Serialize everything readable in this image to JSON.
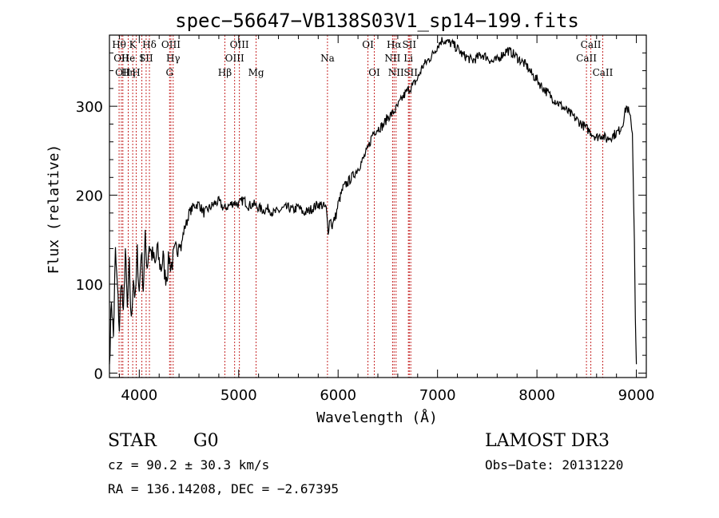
{
  "chart_data": {
    "type": "line",
    "title": "spec−56647−VB138S03V1_sp14−199.fits",
    "xlabel": "Wavelength (Å)",
    "ylabel": "Flux (relative)",
    "xlim": [
      3700,
      9100
    ],
    "ylim": [
      -5,
      380
    ],
    "xticks": [
      4000,
      5000,
      6000,
      7000,
      8000,
      9000
    ],
    "yticks": [
      0,
      100,
      200,
      300
    ],
    "series": [
      {
        "name": "spectrum",
        "x": [
          3700,
          3720,
          3740,
          3760,
          3780,
          3800,
          3820,
          3840,
          3860,
          3880,
          3900,
          3920,
          3940,
          3960,
          3980,
          4000,
          4020,
          4040,
          4060,
          4080,
          4100,
          4120,
          4140,
          4160,
          4180,
          4200,
          4220,
          4240,
          4260,
          4280,
          4300,
          4320,
          4340,
          4360,
          4380,
          4400,
          4420,
          4440,
          4460,
          4480,
          4500,
          4550,
          4600,
          4650,
          4700,
          4750,
          4800,
          4850,
          4900,
          4950,
          5000,
          5050,
          5100,
          5150,
          5200,
          5250,
          5300,
          5350,
          5400,
          5450,
          5500,
          5550,
          5600,
          5650,
          5700,
          5750,
          5800,
          5850,
          5880,
          5900,
          5920,
          5940,
          5960,
          5980,
          6000,
          6050,
          6100,
          6150,
          6200,
          6250,
          6300,
          6350,
          6400,
          6450,
          6500,
          6550,
          6600,
          6650,
          6700,
          6750,
          6800,
          6850,
          6900,
          6950,
          7000,
          7050,
          7100,
          7150,
          7200,
          7250,
          7300,
          7350,
          7400,
          7450,
          7500,
          7550,
          7600,
          7650,
          7700,
          7750,
          7800,
          7850,
          7900,
          7950,
          8000,
          8050,
          8100,
          8150,
          8200,
          8250,
          8300,
          8350,
          8400,
          8450,
          8500,
          8550,
          8600,
          8650,
          8700,
          8750,
          8800,
          8830,
          8860,
          8880,
          8900,
          8920,
          8940,
          8960,
          8980,
          8990,
          9000
        ],
        "values": [
          10,
          85,
          40,
          135,
          95,
          50,
          110,
          60,
          140,
          70,
          120,
          55,
          110,
          80,
          135,
          90,
          140,
          95,
          150,
          120,
          145,
          135,
          130,
          120,
          140,
          125,
          118,
          130,
          108,
          112,
          130,
          120,
          128,
          135,
          140,
          150,
          140,
          155,
          165,
          170,
          180,
          188,
          190,
          180,
          185,
          190,
          193,
          185,
          188,
          192,
          190,
          195,
          188,
          190,
          186,
          183,
          185,
          180,
          182,
          185,
          186,
          183,
          187,
          180,
          182,
          186,
          190,
          188,
          185,
          160,
          175,
          165,
          172,
          178,
          190,
          208,
          215,
          222,
          230,
          240,
          252,
          270,
          275,
          278,
          288,
          292,
          300,
          310,
          318,
          323,
          331,
          345,
          351,
          358,
          368,
          375,
          372,
          370,
          365,
          358,
          355,
          351,
          355,
          358,
          355,
          350,
          352,
          358,
          363,
          360,
          355,
          350,
          345,
          336,
          330,
          322,
          316,
          310,
          305,
          300,
          295,
          290,
          285,
          280,
          275,
          270,
          265,
          268,
          263,
          266,
          270,
          273,
          280,
          290,
          300,
          295,
          285,
          270,
          150,
          60,
          10
        ]
      }
    ],
    "lines": [
      {
        "x": 3797,
        "row": 1,
        "label": "Hθ"
      },
      {
        "x": 3820,
        "row": 2,
        "label": "OII"
      },
      {
        "x": 3835,
        "row": 3,
        "label": "OII"
      },
      {
        "x": 3889,
        "row": 2,
        "label": "He"
      },
      {
        "x": 3889,
        "row": 3,
        "label": "Hη"
      },
      {
        "x": 3934,
        "row": 1,
        "label": "K"
      },
      {
        "x": 3969,
        "row": 3,
        "label": "H"
      },
      {
        "x": 4026,
        "row": 2,
        "label": "I"
      },
      {
        "x": 4069,
        "row": 2,
        "label": "SII"
      },
      {
        "x": 4102,
        "row": 1,
        "label": "Hδ"
      },
      {
        "x": 4318,
        "row": 1,
        "label": "OIII"
      },
      {
        "x": 4341,
        "row": 2,
        "label": "Hγ"
      },
      {
        "x": 4305,
        "row": 3,
        "label": "G"
      },
      {
        "x": 4861,
        "row": 3,
        "label": "Hβ"
      },
      {
        "x": 4959,
        "row": 2,
        "label": "OIII"
      },
      {
        "x": 5007,
        "row": 1,
        "label": "OIII"
      },
      {
        "x": 5175,
        "row": 3,
        "label": "Mg"
      },
      {
        "x": 5893,
        "row": 2,
        "label": "Na"
      },
      {
        "x": 6300,
        "row": 1,
        "label": "OI"
      },
      {
        "x": 6364,
        "row": 3,
        "label": "OI"
      },
      {
        "x": 6563,
        "row": 1,
        "label": "Hα"
      },
      {
        "x": 6548,
        "row": 2,
        "label": "NII"
      },
      {
        "x": 6583,
        "row": 3,
        "label": "NII"
      },
      {
        "x": 6707,
        "row": 2,
        "label": "Li"
      },
      {
        "x": 6716,
        "row": 1,
        "label": "SII"
      },
      {
        "x": 6731,
        "row": 3,
        "label": "SII"
      },
      {
        "x": 8498,
        "row": 2,
        "label": "CaII"
      },
      {
        "x": 8542,
        "row": 1,
        "label": "CaII"
      },
      {
        "x": 8662,
        "row": 3,
        "label": "CaII"
      }
    ]
  },
  "info": {
    "class_label": "STAR",
    "subclass": "G0",
    "survey": "LAMOST DR3",
    "redshift": "cz = 90.2 ± 30.3 km/s",
    "obs_date": "Obs−Date: 20131220",
    "coords": "RA = 136.14208, DEC =  −2.67395"
  }
}
